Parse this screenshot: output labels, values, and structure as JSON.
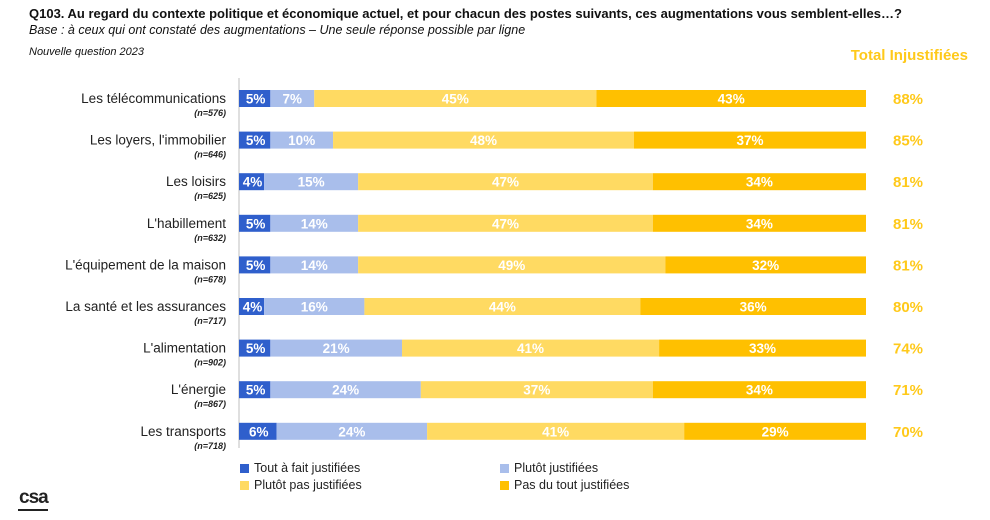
{
  "header": {
    "title": "Q103. Au regard du contexte politique et économique actuel, et pour chacun des postes suivants, ces augmentations vous semblent-elles…?",
    "base": "Base : à ceux qui ont constaté des augmentations – Une seule réponse possible par ligne",
    "note": "Nouvelle question 2023",
    "total_header": "Total Injustifiées"
  },
  "logo": {
    "text": "csa"
  },
  "colors": {
    "tout_a_fait": "#2F5FCC",
    "plutot": "#A9BEEB",
    "plutot_pas": "#FFDA62",
    "pas_du_tout": "#FFC000",
    "total": "#FFC91A"
  },
  "chart_data": {
    "type": "bar",
    "orientation": "horizontal",
    "stacked": true,
    "categories": [
      "Les télécommunications",
      "Les loyers, l'immobilier",
      "Les loisirs",
      "L'habillement",
      "L'équipement de la maison",
      "La santé et les assurances",
      "L'alimentation",
      "L'énergie",
      "Les transports"
    ],
    "sample_sizes": [
      "(n=576)",
      "(n=646)",
      "(n=625)",
      "(n=632)",
      "(n=678)",
      "(n=717)",
      "(n=902)",
      "(n=867)",
      "(n=718)"
    ],
    "series": [
      {
        "name": "Tout à fait justifiées",
        "color": "#2F5FCC",
        "values": [
          5,
          5,
          4,
          5,
          5,
          4,
          5,
          5,
          6
        ]
      },
      {
        "name": "Plutôt justifiées",
        "color": "#A9BEEB",
        "values": [
          7,
          10,
          15,
          14,
          14,
          16,
          21,
          24,
          24
        ]
      },
      {
        "name": "Plutôt pas justifiées",
        "color": "#FFDA62",
        "values": [
          45,
          48,
          47,
          47,
          49,
          44,
          41,
          37,
          41
        ]
      },
      {
        "name": "Pas du tout justifiées",
        "color": "#FFC000",
        "values": [
          43,
          37,
          34,
          34,
          32,
          36,
          33,
          34,
          29
        ]
      }
    ],
    "totals": {
      "name": "Total Injustifiées",
      "values": [
        88,
        85,
        81,
        81,
        81,
        80,
        74,
        71,
        70
      ]
    },
    "value_suffix": "%",
    "legend_position": "bottom",
    "grid": false
  }
}
